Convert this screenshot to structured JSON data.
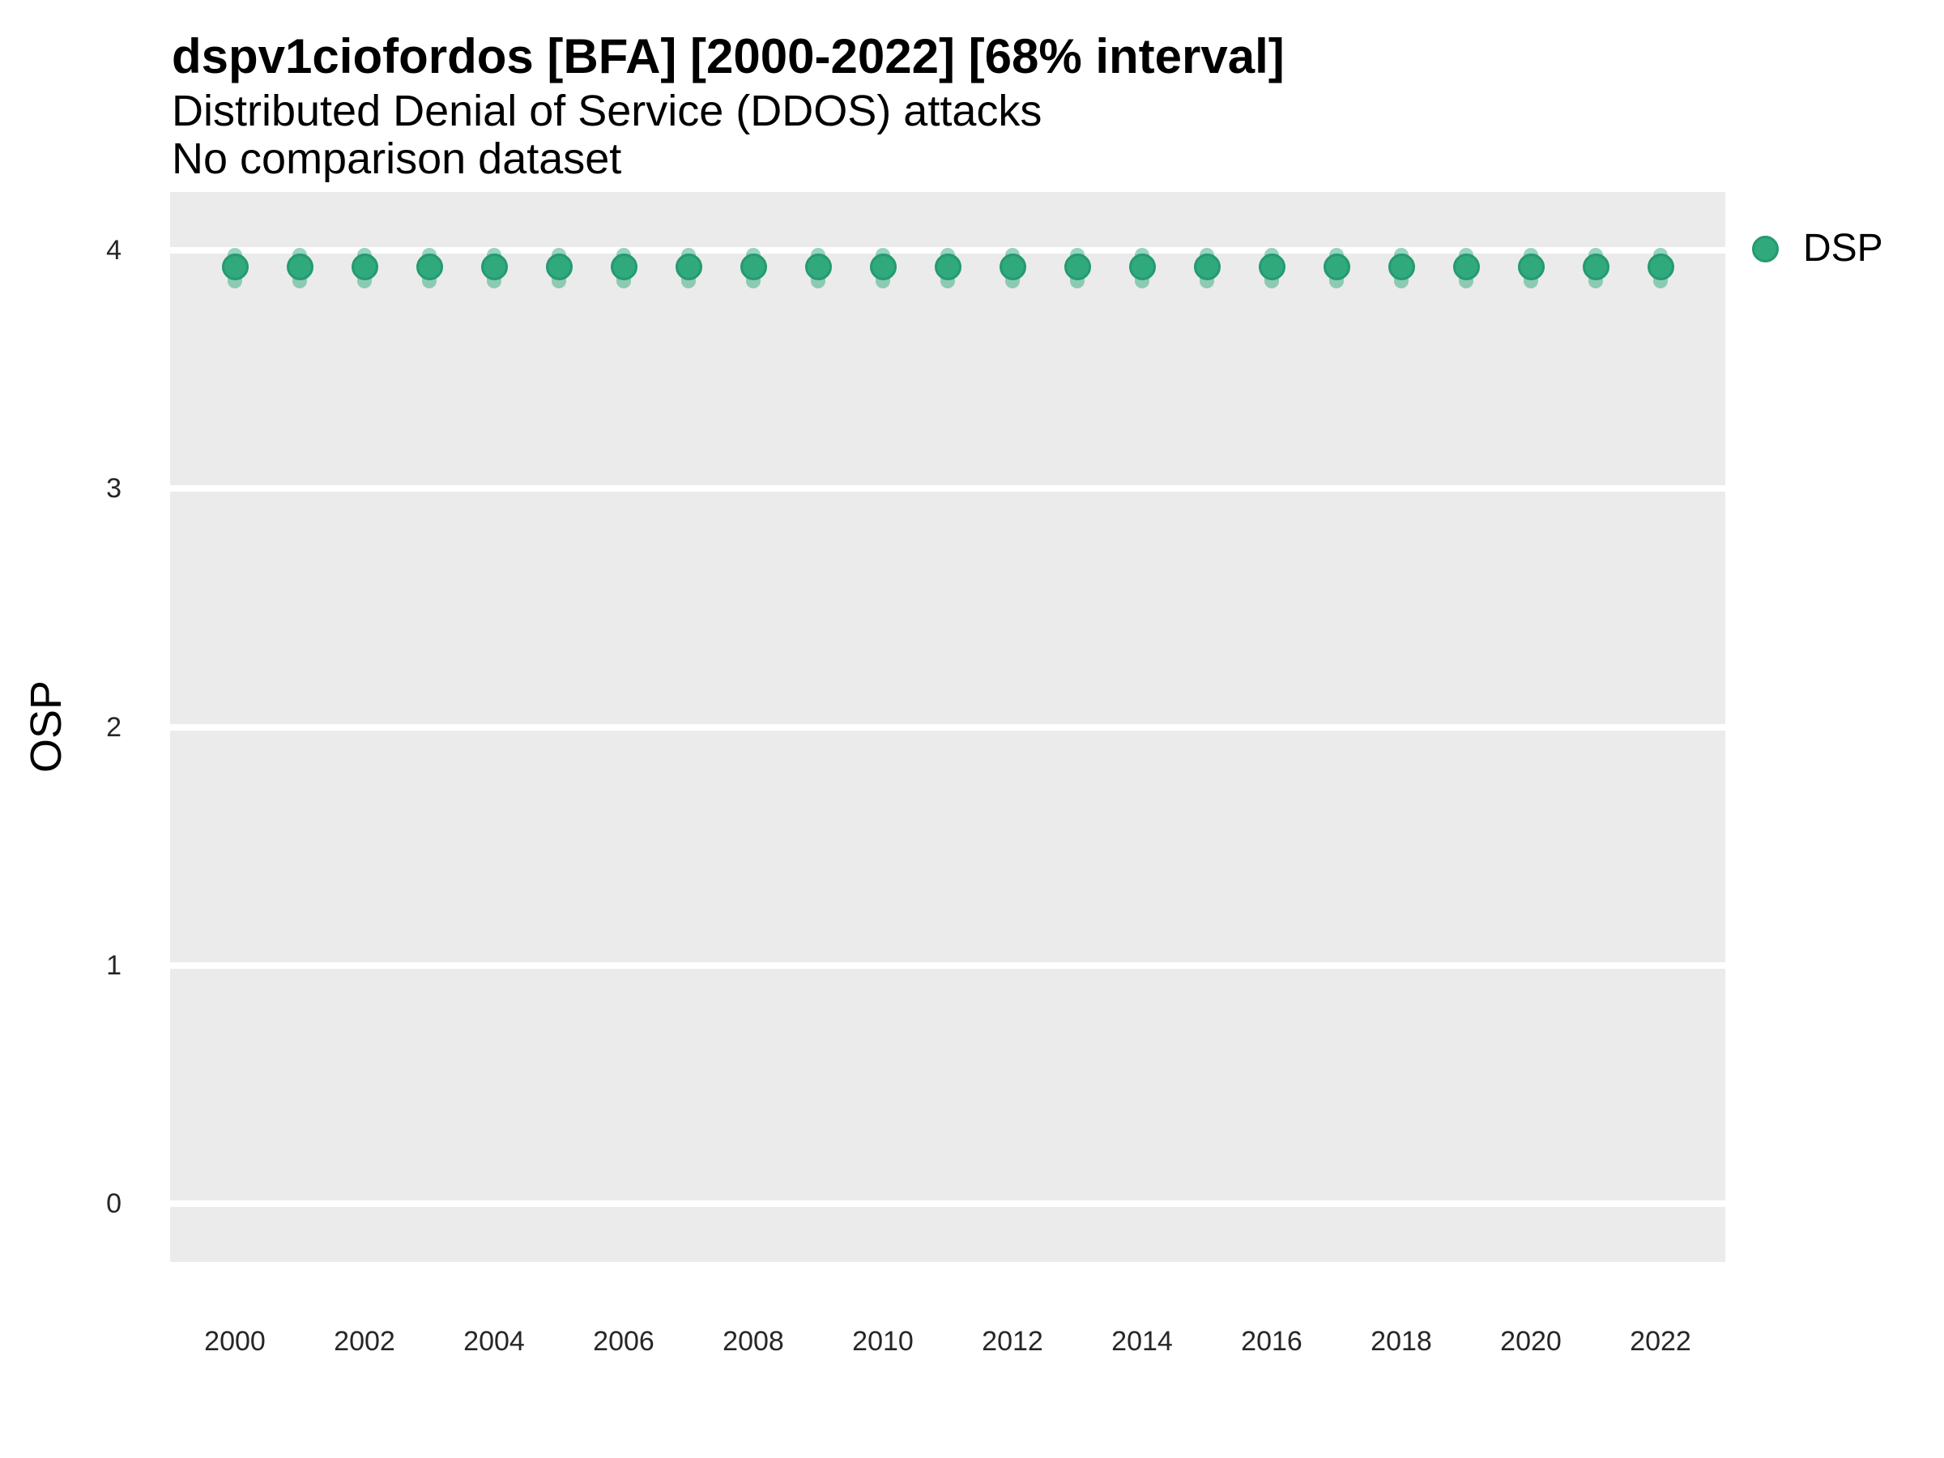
{
  "header": {
    "title": "dspv1ciofordos [BFA] [2000-2022] [68% interval]",
    "subtitle": "Distributed Denial of Service (DDOS) attacks",
    "note": "No comparison dataset"
  },
  "legend": {
    "items": [
      {
        "label": "DSP",
        "marker": "circle-icon",
        "color": "#30a97d"
      }
    ]
  },
  "chart_data": {
    "type": "scatter",
    "title": "dspv1ciofordos [BFA] [2000-2022] [68% interval]",
    "subtitle": "Distributed Denial of Service (DDOS) attacks",
    "note": "No comparison dataset",
    "interval_level": "68%",
    "x": [
      2000,
      2001,
      2002,
      2003,
      2004,
      2005,
      2006,
      2007,
      2008,
      2009,
      2010,
      2011,
      2012,
      2013,
      2014,
      2015,
      2016,
      2017,
      2018,
      2019,
      2020,
      2021,
      2022
    ],
    "series": [
      {
        "name": "DSP",
        "values": [
          3.93,
          3.93,
          3.93,
          3.93,
          3.93,
          3.93,
          3.93,
          3.93,
          3.93,
          3.93,
          3.93,
          3.93,
          3.93,
          3.93,
          3.93,
          3.93,
          3.93,
          3.93,
          3.93,
          3.93,
          3.93,
          3.93,
          3.93
        ],
        "interval_low": [
          3.84,
          3.84,
          3.84,
          3.84,
          3.84,
          3.84,
          3.84,
          3.84,
          3.84,
          3.84,
          3.84,
          3.84,
          3.84,
          3.84,
          3.84,
          3.84,
          3.84,
          3.84,
          3.84,
          3.84,
          3.84,
          3.84,
          3.84
        ],
        "interval_high": [
          4.01,
          4.01,
          4.01,
          4.01,
          4.01,
          4.01,
          4.01,
          4.01,
          4.01,
          4.01,
          4.01,
          4.01,
          4.01,
          4.01,
          4.01,
          4.01,
          4.01,
          4.01,
          4.01,
          4.01,
          4.01,
          4.01,
          4.01
        ]
      }
    ],
    "xlabel": "",
    "ylabel": "OSP",
    "xticks": [
      2000,
      2002,
      2004,
      2006,
      2008,
      2010,
      2012,
      2014,
      2016,
      2018,
      2020,
      2022
    ],
    "yticks": [
      0,
      1,
      2,
      3,
      4
    ],
    "xlim": [
      1999,
      2023
    ],
    "ylim": [
      -0.245,
      4.245
    ],
    "grid": "white-major-horizontal-on-gray",
    "legend_position": "right-top",
    "colors": {
      "point": "#30a97d",
      "point_ring": "#259a70",
      "interval": "rgba(48,169,125,0.5)",
      "panel_bg": "#ebebeb",
      "gridline": "#ffffff"
    }
  }
}
